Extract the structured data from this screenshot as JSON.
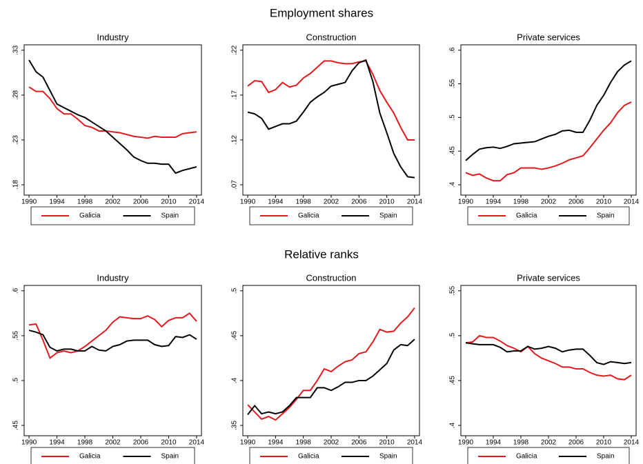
{
  "sections": [
    "Employment shares",
    "Relative ranks"
  ],
  "chart_data": [
    {
      "type": "line",
      "title": "Industry",
      "x": [
        1990,
        1991,
        1992,
        1993,
        1994,
        1995,
        1996,
        1997,
        1998,
        1999,
        2000,
        2001,
        2002,
        2003,
        2004,
        2005,
        2006,
        2007,
        2008,
        2009,
        2010,
        2011,
        2012,
        2013,
        2014
      ],
      "xlim": [
        1989.3,
        2014.7
      ],
      "xticks": [
        1990,
        1994,
        1998,
        2002,
        2006,
        2010,
        2014
      ],
      "ylim": [
        0.1685,
        0.336
      ],
      "yticks": [
        {
          "value": 0.18,
          "label": ".18"
        },
        {
          "value": 0.23,
          "label": ".23"
        },
        {
          "value": 0.28,
          "label": ".28"
        },
        {
          "value": 0.33,
          "label": ".33"
        }
      ],
      "series": [
        {
          "name": "Galicia",
          "color": "#e3191e",
          "values": [
            0.289,
            0.284,
            0.284,
            0.276,
            0.265,
            0.259,
            0.259,
            0.253,
            0.246,
            0.244,
            0.24,
            0.24,
            0.239,
            0.238,
            0.236,
            0.234,
            0.233,
            0.232,
            0.234,
            0.233,
            0.233,
            0.233,
            0.237,
            0.238,
            0.239
          ]
        },
        {
          "name": "Spain",
          "color": "#000000",
          "values": [
            0.319,
            0.306,
            0.3,
            0.285,
            0.27,
            0.266,
            0.262,
            0.258,
            0.255,
            0.25,
            0.245,
            0.24,
            0.233,
            0.226,
            0.219,
            0.211,
            0.207,
            0.204,
            0.204,
            0.203,
            0.203,
            0.193,
            0.196,
            0.198,
            0.2
          ]
        }
      ]
    },
    {
      "type": "line",
      "title": "Construction",
      "x": [
        1990,
        1991,
        1992,
        1993,
        1994,
        1995,
        1996,
        1997,
        1998,
        1999,
        2000,
        2001,
        2002,
        2003,
        2004,
        2005,
        2006,
        2007,
        2008,
        2009,
        2010,
        2011,
        2012,
        2013,
        2014
      ],
      "xlim": [
        1989.3,
        2014.7
      ],
      "xticks": [
        1990,
        1994,
        1998,
        2002,
        2006,
        2010,
        2014
      ],
      "ylim": [
        0.0585,
        0.226
      ],
      "yticks": [
        {
          "value": 0.07,
          "label": ".07"
        },
        {
          "value": 0.12,
          "label": ".12"
        },
        {
          "value": 0.17,
          "label": ".17"
        },
        {
          "value": 0.22,
          "label": ".22"
        }
      ],
      "series": [
        {
          "name": "Galicia",
          "color": "#e3191e",
          "values": [
            0.18,
            0.186,
            0.185,
            0.173,
            0.176,
            0.184,
            0.179,
            0.181,
            0.189,
            0.194,
            0.201,
            0.208,
            0.208,
            0.206,
            0.205,
            0.205,
            0.207,
            0.208,
            0.193,
            0.175,
            0.162,
            0.15,
            0.134,
            0.12,
            0.12
          ]
        },
        {
          "name": "Spain",
          "color": "#000000",
          "values": [
            0.151,
            0.149,
            0.144,
            0.132,
            0.135,
            0.138,
            0.138,
            0.141,
            0.151,
            0.162,
            0.168,
            0.173,
            0.18,
            0.182,
            0.184,
            0.197,
            0.206,
            0.209,
            0.185,
            0.15,
            0.128,
            0.105,
            0.09,
            0.079,
            0.078
          ]
        }
      ]
    },
    {
      "type": "line",
      "title": "Private services",
      "x": [
        1990,
        1991,
        1992,
        1993,
        1994,
        1995,
        1996,
        1997,
        1998,
        1999,
        2000,
        2001,
        2002,
        2003,
        2004,
        2005,
        2006,
        2007,
        2008,
        2009,
        2010,
        2011,
        2012,
        2013,
        2014
      ],
      "xlim": [
        1989.3,
        2014.7
      ],
      "xticks": [
        1990,
        1994,
        1998,
        2002,
        2006,
        2010,
        2014
      ],
      "ylim": [
        0.3846,
        0.608
      ],
      "yticks": [
        {
          "value": 0.4,
          "label": ".4"
        },
        {
          "value": 0.45,
          "label": ".45"
        },
        {
          "value": 0.5,
          "label": ".5"
        },
        {
          "value": 0.55,
          "label": ".55"
        },
        {
          "value": 0.6,
          "label": ".6"
        }
      ],
      "series": [
        {
          "name": "Galicia",
          "color": "#e3191e",
          "values": [
            0.418,
            0.414,
            0.416,
            0.41,
            0.406,
            0.406,
            0.415,
            0.418,
            0.425,
            0.425,
            0.425,
            0.423,
            0.425,
            0.428,
            0.432,
            0.437,
            0.44,
            0.443,
            0.455,
            0.468,
            0.481,
            0.492,
            0.507,
            0.518,
            0.523
          ]
        },
        {
          "name": "Spain",
          "color": "#000000",
          "values": [
            0.436,
            0.445,
            0.453,
            0.455,
            0.456,
            0.454,
            0.457,
            0.461,
            0.462,
            0.463,
            0.464,
            0.468,
            0.472,
            0.475,
            0.48,
            0.481,
            0.478,
            0.478,
            0.496,
            0.518,
            0.533,
            0.552,
            0.568,
            0.578,
            0.584
          ]
        }
      ]
    },
    {
      "type": "line",
      "title": "Industry",
      "x": [
        1990,
        1991,
        1992,
        1993,
        1994,
        1995,
        1996,
        1997,
        1998,
        1999,
        2000,
        2001,
        2002,
        2003,
        2004,
        2005,
        2006,
        2007,
        2008,
        2009,
        2010,
        2011,
        2012,
        2013,
        2014
      ],
      "xlim": [
        1989.3,
        2014.7
      ],
      "xticks": [
        1990,
        1994,
        1998,
        2002,
        2006,
        2010,
        2014
      ],
      "ylim": [
        0.4385,
        0.606
      ],
      "yticks": [
        {
          "value": 0.45,
          "label": ".45"
        },
        {
          "value": 0.5,
          "label": ".5"
        },
        {
          "value": 0.55,
          "label": ".55"
        },
        {
          "value": 0.6,
          "label": ".6"
        }
      ],
      "series": [
        {
          "name": "Galicia",
          "color": "#e3191e",
          "values": [
            0.562,
            0.563,
            0.545,
            0.525,
            0.531,
            0.533,
            0.531,
            0.533,
            0.538,
            0.544,
            0.55,
            0.556,
            0.565,
            0.571,
            0.57,
            0.569,
            0.569,
            0.572,
            0.568,
            0.56,
            0.567,
            0.57,
            0.57,
            0.575,
            0.566
          ]
        },
        {
          "name": "Spain",
          "color": "#000000",
          "values": [
            0.556,
            0.554,
            0.551,
            0.537,
            0.533,
            0.535,
            0.535,
            0.533,
            0.533,
            0.538,
            0.534,
            0.533,
            0.538,
            0.54,
            0.544,
            0.545,
            0.545,
            0.545,
            0.54,
            0.538,
            0.539,
            0.549,
            0.548,
            0.551,
            0.546
          ]
        }
      ]
    },
    {
      "type": "line",
      "title": "Construction",
      "x": [
        1990,
        1991,
        1992,
        1993,
        1994,
        1995,
        1996,
        1997,
        1998,
        1999,
        2000,
        2001,
        2002,
        2003,
        2004,
        2005,
        2006,
        2007,
        2008,
        2009,
        2010,
        2011,
        2012,
        2013,
        2014
      ],
      "xlim": [
        1989.3,
        2014.7
      ],
      "xticks": [
        1990,
        1994,
        1998,
        2002,
        2006,
        2010,
        2014
      ],
      "ylim": [
        0.3385,
        0.506
      ],
      "yticks": [
        {
          "value": 0.35,
          "label": ".35"
        },
        {
          "value": 0.4,
          "label": ".4"
        },
        {
          "value": 0.45,
          "label": ".45"
        },
        {
          "value": 0.5,
          "label": ".5"
        }
      ],
      "series": [
        {
          "name": "Galicia",
          "color": "#e3191e",
          "values": [
            0.373,
            0.365,
            0.357,
            0.36,
            0.356,
            0.363,
            0.37,
            0.379,
            0.389,
            0.389,
            0.4,
            0.413,
            0.41,
            0.416,
            0.421,
            0.423,
            0.43,
            0.432,
            0.443,
            0.457,
            0.454,
            0.455,
            0.464,
            0.471,
            0.481
          ]
        },
        {
          "name": "Spain",
          "color": "#000000",
          "values": [
            0.362,
            0.372,
            0.363,
            0.365,
            0.363,
            0.365,
            0.372,
            0.381,
            0.381,
            0.381,
            0.392,
            0.392,
            0.389,
            0.393,
            0.398,
            0.398,
            0.4,
            0.4,
            0.405,
            0.412,
            0.419,
            0.434,
            0.44,
            0.439,
            0.446
          ]
        }
      ]
    },
    {
      "type": "line",
      "title": "Private services",
      "x": [
        1990,
        1991,
        1992,
        1993,
        1994,
        1995,
        1996,
        1997,
        1998,
        1999,
        2000,
        2001,
        2002,
        2003,
        2004,
        2005,
        2006,
        2007,
        2008,
        2009,
        2010,
        2011,
        2012,
        2013,
        2014
      ],
      "xlim": [
        1989.3,
        2014.7
      ],
      "xticks": [
        1990,
        1994,
        1998,
        2002,
        2006,
        2010,
        2014
      ],
      "ylim": [
        0.3885,
        0.556
      ],
      "yticks": [
        {
          "value": 0.4,
          "label": ".4"
        },
        {
          "value": 0.45,
          "label": ".45"
        },
        {
          "value": 0.5,
          "label": ".5"
        },
        {
          "value": 0.55,
          "label": ".55"
        }
      ],
      "series": [
        {
          "name": "Galicia",
          "color": "#e3191e",
          "values": [
            0.492,
            0.493,
            0.5,
            0.498,
            0.498,
            0.494,
            0.489,
            0.486,
            0.482,
            0.488,
            0.48,
            0.475,
            0.472,
            0.469,
            0.465,
            0.465,
            0.463,
            0.463,
            0.459,
            0.456,
            0.455,
            0.456,
            0.452,
            0.451,
            0.456
          ]
        },
        {
          "name": "Spain",
          "color": "#000000",
          "values": [
            0.492,
            0.491,
            0.49,
            0.49,
            0.49,
            0.487,
            0.482,
            0.483,
            0.483,
            0.488,
            0.485,
            0.486,
            0.488,
            0.486,
            0.482,
            0.484,
            0.485,
            0.485,
            0.478,
            0.47,
            0.468,
            0.471,
            0.47,
            0.469,
            0.47
          ]
        }
      ]
    }
  ]
}
